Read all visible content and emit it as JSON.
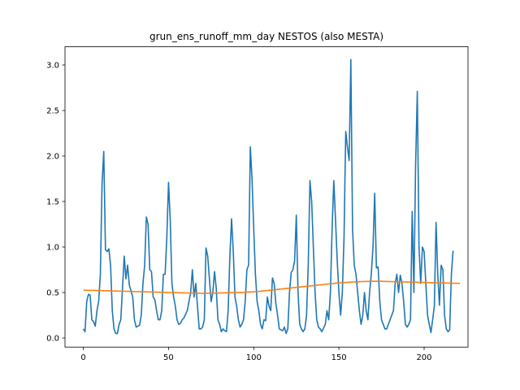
{
  "chart_data": {
    "type": "line",
    "title": "grun_ens_runoff_mm_day NESTOS (also MESTA)",
    "xlabel": "",
    "ylabel": "",
    "xlim": [
      -10.75,
      225.75
    ],
    "ylim": [
      -0.1,
      3.2
    ],
    "xticks": [
      0,
      50,
      100,
      150,
      200
    ],
    "yticks": [
      0.0,
      0.5,
      1.0,
      1.5,
      2.0,
      2.5,
      3.0
    ],
    "ytick_labels": [
      "0.0",
      "0.5",
      "1.0",
      "1.5",
      "2.0",
      "2.5",
      "3.0"
    ],
    "grid": false,
    "colors": {
      "series_1": "#1f77b4",
      "series_2": "#ff7f0e"
    },
    "series": [
      {
        "values": [
          0.1,
          0.07,
          0.4,
          0.48,
          0.47,
          0.2,
          0.18,
          0.13,
          0.3,
          0.4,
          0.7,
          1.7,
          2.05,
          0.97,
          0.95,
          0.98,
          0.8,
          0.3,
          0.1,
          0.05,
          0.05,
          0.15,
          0.2,
          0.55,
          0.9,
          0.65,
          0.8,
          0.58,
          0.52,
          0.45,
          0.2,
          0.12,
          0.13,
          0.14,
          0.25,
          0.6,
          0.8,
          1.33,
          1.25,
          0.75,
          0.73,
          0.45,
          0.42,
          0.3,
          0.2,
          0.2,
          0.3,
          0.7,
          0.7,
          1.1,
          1.71,
          1.3,
          0.6,
          0.45,
          0.35,
          0.2,
          0.15,
          0.16,
          0.2,
          0.22,
          0.26,
          0.3,
          0.4,
          0.5,
          0.75,
          0.45,
          0.6,
          0.35,
          0.1,
          0.1,
          0.12,
          0.2,
          0.99,
          0.9,
          0.65,
          0.4,
          0.5,
          0.73,
          0.55,
          0.2,
          0.15,
          0.07,
          0.1,
          0.08,
          0.07,
          0.3,
          0.9,
          1.31,
          0.95,
          0.45,
          0.35,
          0.2,
          0.12,
          0.15,
          0.2,
          0.4,
          0.75,
          0.8,
          2.1,
          1.75,
          1.2,
          0.7,
          0.4,
          0.3,
          0.15,
          0.1,
          0.2,
          0.19,
          0.45,
          0.35,
          0.3,
          0.66,
          0.6,
          0.38,
          0.25,
          0.1,
          0.09,
          0.08,
          0.12,
          0.05,
          0.1,
          0.5,
          0.72,
          0.75,
          0.85,
          1.35,
          0.5,
          0.15,
          0.1,
          0.07,
          0.1,
          0.25,
          0.8,
          1.73,
          1.5,
          1.0,
          0.5,
          0.2,
          0.12,
          0.1,
          0.07,
          0.11,
          0.15,
          0.3,
          0.2,
          0.5,
          1.2,
          1.73,
          1.3,
          0.85,
          0.5,
          0.25,
          0.5,
          1.1,
          2.27,
          2.1,
          1.95,
          3.06,
          1.2,
          0.8,
          0.7,
          0.5,
          0.3,
          0.15,
          0.25,
          0.5,
          0.3,
          0.2,
          0.5,
          0.7,
          1.0,
          1.59,
          0.77,
          0.78,
          0.4,
          0.2,
          0.15,
          0.1,
          0.1,
          0.15,
          0.2,
          0.25,
          0.3,
          0.6,
          0.7,
          0.5,
          0.69,
          0.6,
          0.4,
          0.15,
          0.12,
          0.15,
          0.2,
          1.39,
          0.5,
          1.9,
          2.71,
          1.0,
          0.6,
          1.0,
          0.95,
          0.6,
          0.25,
          0.15,
          0.06,
          0.2,
          0.35,
          1.27,
          0.7,
          0.36,
          0.8,
          0.75,
          0.25,
          0.1,
          0.07,
          0.09,
          0.7,
          0.96
        ]
      },
      {
        "values": [
          0.525,
          0.525,
          0.5245,
          0.524,
          0.5235,
          0.523,
          0.5225,
          0.522,
          0.5215,
          0.521,
          0.5205,
          0.52,
          0.5195,
          0.519,
          0.5185,
          0.518,
          0.5175,
          0.517,
          0.5165,
          0.516,
          0.5155,
          0.515,
          0.5145,
          0.514,
          0.5135,
          0.513,
          0.5125,
          0.512,
          0.5115,
          0.511,
          0.5105,
          0.51,
          0.5095,
          0.509,
          0.5085,
          0.508,
          0.5075,
          0.507,
          0.5065,
          0.506,
          0.5055,
          0.505,
          0.5045,
          0.504,
          0.5035,
          0.503,
          0.5025,
          0.502,
          0.5015,
          0.501,
          0.5005,
          0.5,
          0.4995,
          0.499,
          0.4985,
          0.498,
          0.4975,
          0.497,
          0.4965,
          0.496,
          0.4955,
          0.495,
          0.4945,
          0.494,
          0.4935,
          0.493,
          0.4925,
          0.492,
          0.4915,
          0.491,
          0.4905,
          0.49,
          0.4905,
          0.491,
          0.4915,
          0.492,
          0.4925,
          0.493,
          0.4935,
          0.494,
          0.4945,
          0.495,
          0.4955,
          0.496,
          0.4965,
          0.497,
          0.4975,
          0.498,
          0.4985,
          0.499,
          0.4995,
          0.5,
          0.5005,
          0.501,
          0.502,
          0.503,
          0.504,
          0.505,
          0.506,
          0.507,
          0.508,
          0.509,
          0.51,
          0.512,
          0.514,
          0.516,
          0.518,
          0.52,
          0.522,
          0.524,
          0.526,
          0.528,
          0.53,
          0.532,
          0.534,
          0.536,
          0.538,
          0.54,
          0.542,
          0.544,
          0.546,
          0.548,
          0.55,
          0.552,
          0.554,
          0.556,
          0.558,
          0.56,
          0.562,
          0.564,
          0.566,
          0.568,
          0.57,
          0.572,
          0.574,
          0.576,
          0.578,
          0.58,
          0.582,
          0.584,
          0.586,
          0.588,
          0.59,
          0.592,
          0.594,
          0.596,
          0.598,
          0.6,
          0.602,
          0.604,
          0.606,
          0.608,
          0.609,
          0.61,
          0.611,
          0.612,
          0.613,
          0.614,
          0.615,
          0.616,
          0.617,
          0.618,
          0.619,
          0.62,
          0.6205,
          0.621,
          0.6215,
          0.622,
          0.6225,
          0.623,
          0.623,
          0.623,
          0.623,
          0.623,
          0.623,
          0.623,
          0.6225,
          0.622,
          0.6215,
          0.621,
          0.6205,
          0.62,
          0.6195,
          0.619,
          0.6185,
          0.618,
          0.6175,
          0.617,
          0.6165,
          0.616,
          0.6155,
          0.615,
          0.6145,
          0.614,
          0.6135,
          0.613,
          0.6125,
          0.612,
          0.6115,
          0.611,
          0.6105,
          0.61,
          0.6095,
          0.609,
          0.6085,
          0.608,
          0.6075,
          0.607,
          0.6065,
          0.606,
          0.6055,
          0.605,
          0.6045,
          0.604,
          0.6035,
          0.603,
          0.6025,
          0.602,
          0.6015,
          0.601,
          0.6005,
          0.6
        ]
      }
    ]
  }
}
